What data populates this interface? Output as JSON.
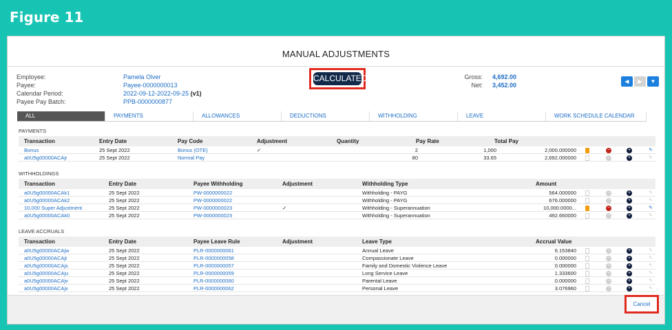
{
  "figure_title": "Figure 11",
  "page_title": "MANUAL ADJUSTMENTS",
  "employee_info": {
    "labels": [
      "Employee:",
      "Payee:",
      "Calendar Period:",
      "Payee Pay Batch:"
    ],
    "employee": "Pamela Olver",
    "payee": "Payee-0000000013",
    "calendar_period": "2022-09-12-2022-09-25",
    "calendar_version": "(v1)",
    "pay_batch": "PPB-0000000877"
  },
  "status_badge": "CALCULATED",
  "totals": {
    "gross_label": "Gross:",
    "gross_value": "4,692.00",
    "net_label": "Net:",
    "net_value": "3,452.00"
  },
  "nav": {
    "prev_icon": "chevron-left-icon",
    "next_icon": "chevron-right-icon",
    "menu_icon": "chevron-down-icon",
    "prev": "◀",
    "next": "▶",
    "menu": "▼"
  },
  "tabs": [
    "ALL",
    "PAYMENTS",
    "ALLOWANCES",
    "DEDUCTIONS",
    "WITHHOLDING",
    "LEAVE",
    "WORK SCHEDULE CALENDAR"
  ],
  "payments": {
    "title": "PAYMENTS",
    "headers": [
      "Transaction",
      "Entry Date",
      "Pay Code",
      "Adjustment",
      "Quantity",
      "Pay Rate",
      "Total Pay"
    ],
    "rows": [
      {
        "transaction": "Bonus",
        "date": "25 Sept 2022",
        "code": "Bonus (OTE)",
        "adj": "✓",
        "qty": "2",
        "rate": "1,000",
        "total": "2,000.000000",
        "active": true
      },
      {
        "transaction": "a0U5g00000ACAjr",
        "date": "25 Sept 2022",
        "code": "Normal Pay",
        "adj": "",
        "qty": "80",
        "rate": "33.65",
        "total": "2,692.000000",
        "active": false
      }
    ]
  },
  "withholdings": {
    "title": "WITHHOLDINGS",
    "headers": [
      "Transaction",
      "Entry Date",
      "Payee Withholding",
      "Adjustment",
      "Withholding Type",
      "Amount"
    ],
    "rows": [
      {
        "transaction": "a0U5g00000ACAk1",
        "date": "25 Sept 2022",
        "rule": "PW-0000000022",
        "adj": "",
        "type": "Withholding - PAYG",
        "amount": "564.000000",
        "active": false
      },
      {
        "transaction": "a0U5g00000ACAk2",
        "date": "25 Sept 2022",
        "rule": "PW-0000000022",
        "adj": "",
        "type": "Withholding - PAYG",
        "amount": "676.000000",
        "active": false
      },
      {
        "transaction": "10,000 Super Adjustment",
        "date": "25 Sept 2022",
        "rule": "PW-0000000023",
        "adj": "✓",
        "type": "Withholding - Superannuation",
        "amount": "10,000.0000...",
        "active": true
      },
      {
        "transaction": "a0U5g00000ACAk0",
        "date": "25 Sept 2022",
        "rule": "PW-0000000023",
        "adj": "",
        "type": "Withholding - Superannuation",
        "amount": "492.660000",
        "active": false
      }
    ]
  },
  "leave_accruals": {
    "title": "LEAVE ACCRUALS",
    "headers": [
      "Transaction",
      "Entry Date",
      "Payee Leave Rule",
      "Adjustment",
      "Leave Type",
      "Accrual Value"
    ],
    "rows": [
      {
        "transaction": "a0U5g00000ACAjw",
        "date": "25 Sept 2022",
        "rule": "PLR-0000000061",
        "adj": "",
        "type": "Annual Leave",
        "amount": "6.153840",
        "active": false
      },
      {
        "transaction": "a0U5g00000ACAjt",
        "date": "25 Sept 2022",
        "rule": "PLR-0000000058",
        "adj": "",
        "type": "Compassionate Leave",
        "amount": "0.000000",
        "active": false
      },
      {
        "transaction": "a0U5g00000ACAjs",
        "date": "25 Sept 2022",
        "rule": "PLR-0000000057",
        "adj": "",
        "type": "Family and Domestic Violence Leave",
        "amount": "0.000000",
        "active": false
      },
      {
        "transaction": "a0U5g00000ACAju",
        "date": "25 Sept 2022",
        "rule": "PLR-0000000059",
        "adj": "",
        "type": "Long Service Leave",
        "amount": "1.333600",
        "active": false
      },
      {
        "transaction": "a0U5g00000ACAjv",
        "date": "25 Sept 2022",
        "rule": "PLR-0000000060",
        "adj": "",
        "type": "Parental Leave",
        "amount": "0.000000",
        "active": false
      },
      {
        "transaction": "a0U5g00000ACAjx",
        "date": "25 Sept 2022",
        "rule": "PLR-0000000062",
        "adj": "",
        "type": "Personal Leave",
        "amount": "3.076960",
        "active": false
      }
    ]
  },
  "icons": {
    "doc": "document-icon",
    "remove": "remove-icon",
    "add": "add-icon",
    "edit": "pencil-icon"
  },
  "cancel_label": "Cancel"
}
